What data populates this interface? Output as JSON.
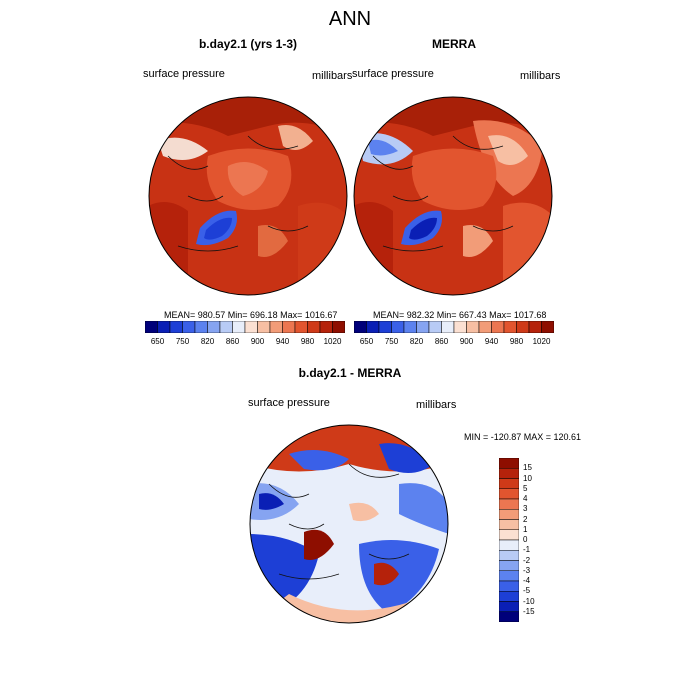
{
  "title": "ANN",
  "panels": [
    {
      "title": "b.day2.1 (yrs 1-3)",
      "left_label": "surface pressure",
      "right_label": "millibars",
      "stats": "MEAN= 980.57  Min= 696.18  Max= 1016.67"
    },
    {
      "title": "MERRA",
      "left_label": "surface pressure",
      "right_label": "millibars",
      "stats": "MEAN= 982.32  Min= 667.43  Max= 1017.68"
    },
    {
      "title": "b.day2.1 - MERRA",
      "left_label": "surface pressure",
      "right_label": "millibars",
      "stats": "MIN = -120.87 MAX = 120.61"
    }
  ],
  "colorbar_top": {
    "tick_labels": [
      "650",
      "750",
      "820",
      "860",
      "900",
      "940",
      "980",
      "1020"
    ],
    "colors": [
      "#00007a",
      "#0a1fb5",
      "#1d3fd6",
      "#3a60e8",
      "#5c82ef",
      "#86a4f1",
      "#b8cbf5",
      "#e8eefa",
      "#fbe0d2",
      "#f7bfa3",
      "#f29c78",
      "#ec7651",
      "#e2552f",
      "#cf3a18",
      "#b5220b",
      "#8e0e00"
    ]
  },
  "colorbar_diff": {
    "tick_labels": [
      "15",
      "10",
      "5",
      "4",
      "3",
      "2",
      "1",
      "0",
      "-1",
      "-2",
      "-3",
      "-4",
      "-5",
      "-10",
      "-15"
    ],
    "colors": [
      "#8e0e00",
      "#b5220b",
      "#cf3a18",
      "#e2552f",
      "#ec7651",
      "#f29c78",
      "#f7bfa3",
      "#fbe0d2",
      "#e8eefa",
      "#b8cbf5",
      "#86a4f1",
      "#5c82ef",
      "#3a60e8",
      "#1d3fd6",
      "#0a1fb5",
      "#00007a"
    ]
  }
}
